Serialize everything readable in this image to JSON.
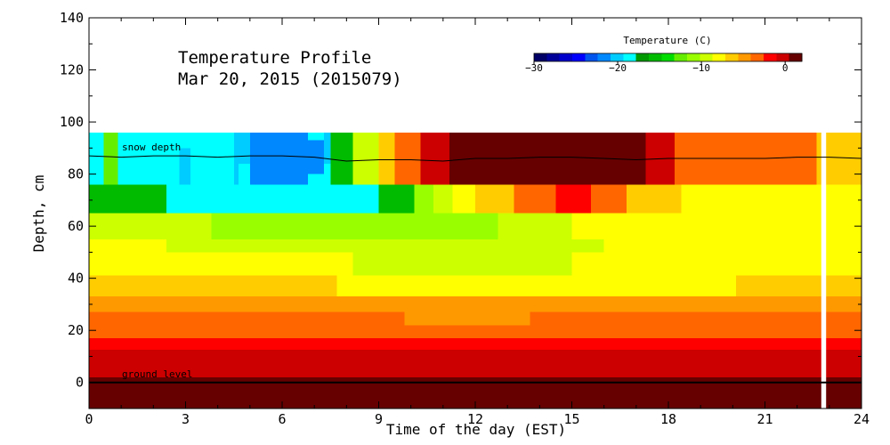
{
  "chart_data": {
    "type": "heatmap",
    "title": "Temperature Profile",
    "subtitle": "Mar 20, 2015 (2015079)",
    "xlabel": "Time of the day (EST)",
    "ylabel": "Depth, cm",
    "xlim": [
      0,
      24
    ],
    "ylim": [
      -10,
      140
    ],
    "xticks": [
      0,
      3,
      6,
      9,
      12,
      15,
      18,
      21,
      24
    ],
    "yticks": [
      0,
      20,
      40,
      60,
      80,
      100,
      120,
      140
    ],
    "colorbar": {
      "title": "Temperature (C)",
      "range": [
        -30,
        2
      ],
      "tick_values": [
        -30,
        -20,
        -10,
        0
      ],
      "tick_labels": [
        "−30",
        "−20",
        "−10",
        "0"
      ],
      "colors": [
        "#000066",
        "#000099",
        "#0000cc",
        "#0000ff",
        "#0055ee",
        "#0088ff",
        "#00ccff",
        "#00ffff",
        "#009900",
        "#00bb00",
        "#00dd00",
        "#66ee00",
        "#99ff00",
        "#ccff00",
        "#ffff00",
        "#ffcc00",
        "#ff9900",
        "#ff6600",
        "#ff0000",
        "#cc0000",
        "#660000"
      ]
    },
    "annotations": [
      "snow depth",
      "ground level"
    ],
    "ground_level_cm": 0,
    "data_gap_hours": [
      22.75,
      22.9
    ],
    "snow_depth_cm": {
      "x": [
        0,
        1,
        2,
        3,
        4,
        5,
        6,
        7,
        8,
        9,
        10,
        11,
        12,
        13,
        14,
        15,
        16,
        17,
        18,
        19,
        20,
        21,
        22,
        23,
        24
      ],
      "y": [
        87,
        86.5,
        87,
        87,
        86.5,
        87,
        87,
        86.5,
        85,
        85.5,
        85.5,
        85,
        86,
        86,
        86.5,
        86.5,
        86,
        85.5,
        86,
        86,
        86,
        86,
        86.5,
        86.5,
        86
      ]
    },
    "layers": [
      {
        "depth_range": [
          -10,
          2
        ],
        "segments": [
          [
            0,
            24,
            1.0
          ]
        ]
      },
      {
        "depth_range": [
          2,
          12.5
        ],
        "segments": [
          [
            0,
            24,
            -1.0
          ]
        ]
      },
      {
        "depth_range": [
          12.5,
          17
        ],
        "segments": [
          [
            0,
            24,
            -2.5
          ]
        ]
      },
      {
        "depth_range": [
          17,
          22
        ],
        "segments": [
          [
            0,
            24,
            -3.5
          ]
        ]
      },
      {
        "depth_range": [
          22,
          27
        ],
        "segments": [
          [
            0,
            9.8,
            -3.5
          ],
          [
            9.8,
            13.7,
            -4.2
          ],
          [
            13.7,
            24,
            -3.5
          ]
        ]
      },
      {
        "depth_range": [
          27,
          33
        ],
        "segments": [
          [
            0,
            24,
            -5.5
          ]
        ]
      },
      {
        "depth_range": [
          33,
          41
        ],
        "segments": [
          [
            0,
            7.7,
            -6.5
          ],
          [
            7.7,
            20.1,
            -8.0
          ],
          [
            20.1,
            24,
            -6.5
          ]
        ]
      },
      {
        "depth_range": [
          41,
          50
        ],
        "segments": [
          [
            0,
            8.2,
            -8.0
          ],
          [
            8.2,
            15.0,
            -9.0
          ],
          [
            15.0,
            24,
            -8.0
          ]
        ]
      },
      {
        "depth_range": [
          50,
          55
        ],
        "segments": [
          [
            0,
            2.4,
            -8.0
          ],
          [
            2.4,
            16.0,
            -9.0
          ],
          [
            16.0,
            24,
            -8.0
          ]
        ]
      },
      {
        "depth_range": [
          55,
          65
        ],
        "segments": [
          [
            0,
            3.8,
            -9.0
          ],
          [
            3.8,
            12.7,
            -10.5
          ],
          [
            12.7,
            15.0,
            -9.0
          ],
          [
            15.0,
            24,
            -8.0
          ]
        ]
      },
      {
        "depth_range": [
          65,
          76
        ],
        "segments": [
          [
            0,
            2.4,
            -15.5
          ],
          [
            2.4,
            9.0,
            -18.0
          ],
          [
            9.0,
            10.1,
            -15.5
          ],
          [
            10.1,
            10.7,
            -10.5
          ],
          [
            10.7,
            11.3,
            -9.0
          ],
          [
            11.3,
            12.0,
            -8.0
          ],
          [
            12.0,
            13.2,
            -6.0
          ],
          [
            13.2,
            14.5,
            -4.0
          ],
          [
            14.5,
            15.6,
            -2.5
          ],
          [
            15.6,
            16.7,
            -4.0
          ],
          [
            16.7,
            18.4,
            -6.0
          ],
          [
            18.4,
            24,
            -8.0
          ]
        ]
      },
      {
        "depth_range": [
          76,
          96
        ],
        "segments": [
          [
            0,
            0.5,
            -18.0
          ],
          [
            0.5,
            7.5,
            -18.0
          ],
          [
            7.5,
            8.2,
            -15.5
          ],
          [
            8.2,
            9.0,
            -9.0
          ],
          [
            9.0,
            9.5,
            -6.0
          ],
          [
            9.5,
            10.3,
            -3.0
          ],
          [
            10.3,
            11.2,
            -0.5
          ],
          [
            11.2,
            17.3,
            1.5
          ],
          [
            17.3,
            18.2,
            -1.0
          ],
          [
            18.2,
            21.3,
            -3.0
          ],
          [
            21.3,
            22.6,
            -4.0
          ],
          [
            22.6,
            24,
            -7.0
          ]
        ]
      }
    ],
    "patches": [
      {
        "x": [
          0.45,
          0.9
        ],
        "depth_range": [
          76,
          96
        ],
        "value": -13
      },
      {
        "x": [
          2.8,
          3.15
        ],
        "depth_range": [
          76,
          90
        ],
        "value": -20
      },
      {
        "x": [
          4.5,
          4.65
        ],
        "depth_range": [
          76,
          96
        ],
        "value": -20
      },
      {
        "x": [
          4.65,
          5.0
        ],
        "depth_range": [
          84,
          96
        ],
        "value": -20
      },
      {
        "x": [
          5.0,
          6.8
        ],
        "depth_range": [
          76,
          96
        ],
        "value": -21
      },
      {
        "x": [
          6.8,
          7.3
        ],
        "depth_range": [
          80,
          93
        ],
        "value": -21
      },
      {
        "x": [
          7.3,
          7.5
        ],
        "depth_range": [
          84,
          96
        ],
        "value": -20
      },
      {
        "x": [
          7.55,
          8.1
        ],
        "depth_range": [
          84,
          96
        ],
        "value": -15.5
      },
      {
        "x": [
          7.75,
          8.1
        ],
        "depth_range": [
          76,
          84
        ],
        "value": -15.5
      }
    ]
  }
}
